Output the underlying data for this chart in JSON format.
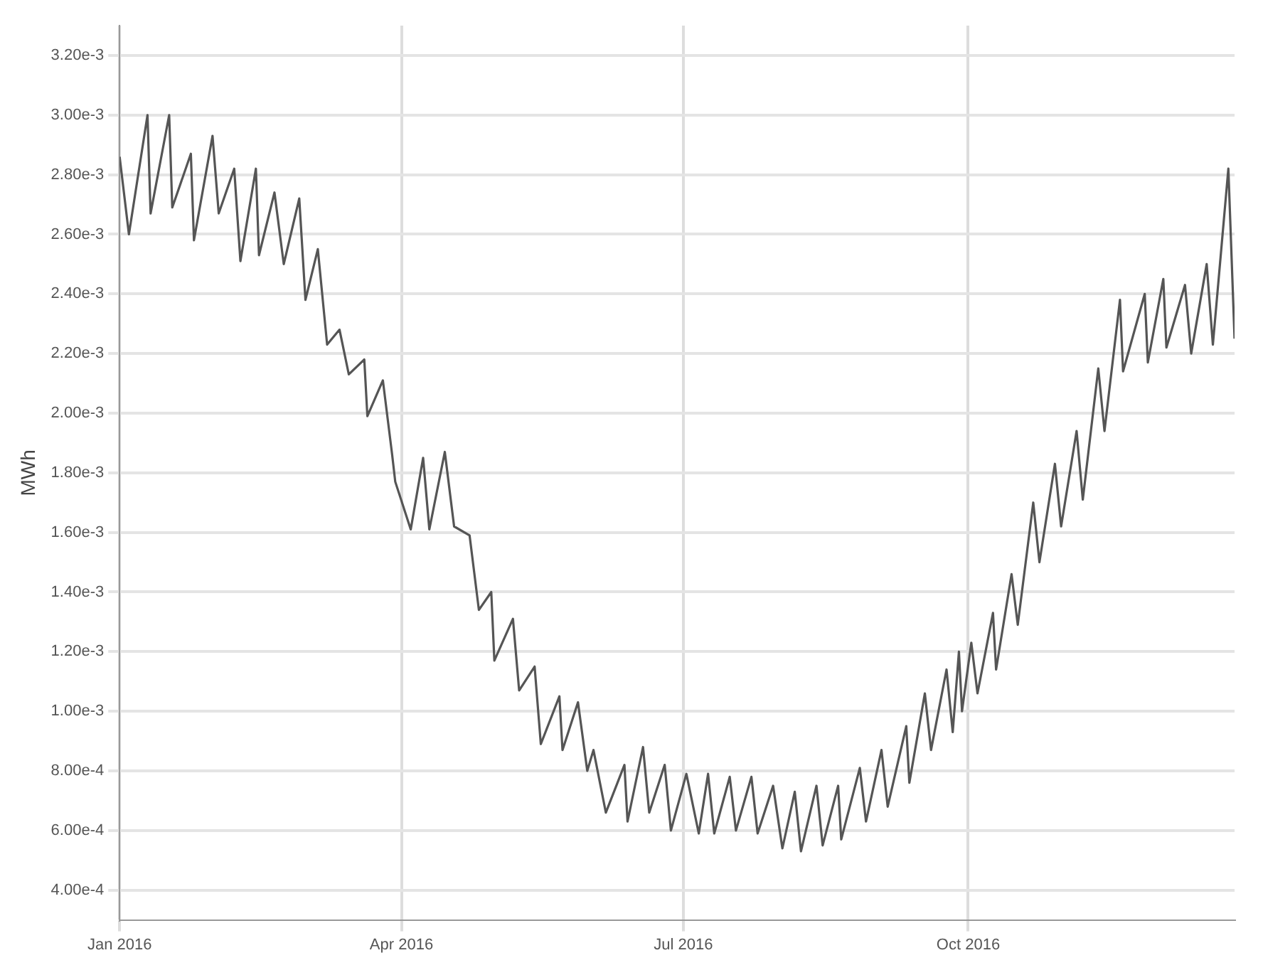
{
  "chart_data": {
    "type": "line",
    "ylabel": "MWh",
    "grid": true,
    "marker": "none",
    "line_style": "solid",
    "legend": false,
    "xlim": [
      "2016-01-01",
      "2016-12-26"
    ],
    "xticks": [
      {
        "value": "2016-01-01",
        "label": "Jan 2016"
      },
      {
        "value": "2016-04-01",
        "label": "Apr 2016"
      },
      {
        "value": "2016-07-01",
        "label": "Jul 2016"
      },
      {
        "value": "2016-10-01",
        "label": "Oct 2016"
      }
    ],
    "ylim": [
      0.0003,
      0.0033
    ],
    "yticks": [
      {
        "value": 0.0004,
        "label": "4.00e-4"
      },
      {
        "value": 0.0006,
        "label": "6.00e-4"
      },
      {
        "value": 0.0008,
        "label": "8.00e-4"
      },
      {
        "value": 0.001,
        "label": "1.00e-3"
      },
      {
        "value": 0.0012,
        "label": "1.20e-3"
      },
      {
        "value": 0.0014,
        "label": "1.40e-3"
      },
      {
        "value": 0.0016,
        "label": "1.60e-3"
      },
      {
        "value": 0.0018,
        "label": "1.80e-3"
      },
      {
        "value": 0.002,
        "label": "2.00e-3"
      },
      {
        "value": 0.0022,
        "label": "2.20e-3"
      },
      {
        "value": 0.0024,
        "label": "2.40e-3"
      },
      {
        "value": 0.0026,
        "label": "2.60e-3"
      },
      {
        "value": 0.0028,
        "label": "2.80e-3"
      },
      {
        "value": 0.003,
        "label": "3.00e-3"
      },
      {
        "value": 0.0032,
        "label": "3.20e-3"
      }
    ],
    "x": [
      "2016-01-01",
      "2016-01-04",
      "2016-01-10",
      "2016-01-11",
      "2016-01-17",
      "2016-01-18",
      "2016-01-24",
      "2016-01-25",
      "2016-01-31",
      "2016-02-02",
      "2016-02-07",
      "2016-02-09",
      "2016-02-14",
      "2016-02-15",
      "2016-02-20",
      "2016-02-23",
      "2016-02-28",
      "2016-03-01",
      "2016-03-05",
      "2016-03-08",
      "2016-03-12",
      "2016-03-15",
      "2016-03-20",
      "2016-03-21",
      "2016-03-26",
      "2016-03-29",
      "2016-03-30",
      "2016-04-04",
      "2016-04-08",
      "2016-04-10",
      "2016-04-15",
      "2016-04-18",
      "2016-04-23",
      "2016-04-26",
      "2016-04-30",
      "2016-05-01",
      "2016-05-07",
      "2016-05-09",
      "2016-05-14",
      "2016-05-16",
      "2016-05-22",
      "2016-05-23",
      "2016-05-28",
      "2016-05-31",
      "2016-06-02",
      "2016-06-06",
      "2016-06-12",
      "2016-06-13",
      "2016-06-18",
      "2016-06-20",
      "2016-06-25",
      "2016-06-27",
      "2016-07-02",
      "2016-07-06",
      "2016-07-09",
      "2016-07-11",
      "2016-07-16",
      "2016-07-18",
      "2016-07-23",
      "2016-07-25",
      "2016-07-30",
      "2016-08-02",
      "2016-08-06",
      "2016-08-08",
      "2016-08-13",
      "2016-08-15",
      "2016-08-20",
      "2016-08-21",
      "2016-08-27",
      "2016-08-29",
      "2016-09-03",
      "2016-09-05",
      "2016-09-11",
      "2016-09-12",
      "2016-09-17",
      "2016-09-19",
      "2016-09-24",
      "2016-09-26",
      "2016-09-28",
      "2016-09-29",
      "2016-10-02",
      "2016-10-04",
      "2016-10-09",
      "2016-10-10",
      "2016-10-15",
      "2016-10-17",
      "2016-10-22",
      "2016-10-24",
      "2016-10-29",
      "2016-10-31",
      "2016-11-05",
      "2016-11-07",
      "2016-11-12",
      "2016-11-14",
      "2016-11-19",
      "2016-11-20",
      "2016-11-27",
      "2016-11-28",
      "2016-12-03",
      "2016-12-04",
      "2016-12-10",
      "2016-12-12",
      "2016-12-17",
      "2016-12-19",
      "2016-12-24",
      "2016-12-26"
    ],
    "series": [
      {
        "color": "#555555",
        "values": [
          0.00286,
          0.0026,
          0.003,
          0.00267,
          0.003,
          0.00269,
          0.00287,
          0.00258,
          0.00293,
          0.00267,
          0.00282,
          0.00251,
          0.00282,
          0.00253,
          0.00274,
          0.0025,
          0.00272,
          0.00238,
          0.00255,
          0.00223,
          0.00228,
          0.00213,
          0.00218,
          0.00199,
          0.00211,
          0.00186,
          0.00177,
          0.00161,
          0.00185,
          0.00161,
          0.00187,
          0.00162,
          0.00159,
          0.00134,
          0.0014,
          0.00117,
          0.00131,
          0.00107,
          0.00115,
          0.00089,
          0.00105,
          0.00087,
          0.00103,
          0.0008,
          0.00087,
          0.00066,
          0.00082,
          0.00063,
          0.00088,
          0.00066,
          0.00082,
          0.0006,
          0.00079,
          0.00059,
          0.00079,
          0.00059,
          0.00078,
          0.0006,
          0.00078,
          0.00059,
          0.00075,
          0.00054,
          0.00073,
          0.00053,
          0.00075,
          0.00055,
          0.00075,
          0.00057,
          0.00081,
          0.00063,
          0.00087,
          0.00068,
          0.00095,
          0.00076,
          0.00106,
          0.00087,
          0.00114,
          0.00093,
          0.0012,
          0.001,
          0.00123,
          0.00106,
          0.00133,
          0.00114,
          0.00146,
          0.00129,
          0.0017,
          0.0015,
          0.00183,
          0.00162,
          0.00194,
          0.00171,
          0.00215,
          0.00194,
          0.00238,
          0.00214,
          0.0024,
          0.00217,
          0.00245,
          0.00222,
          0.00243,
          0.0022,
          0.0025,
          0.00223,
          0.00282,
          0.00225
        ]
      }
    ]
  }
}
